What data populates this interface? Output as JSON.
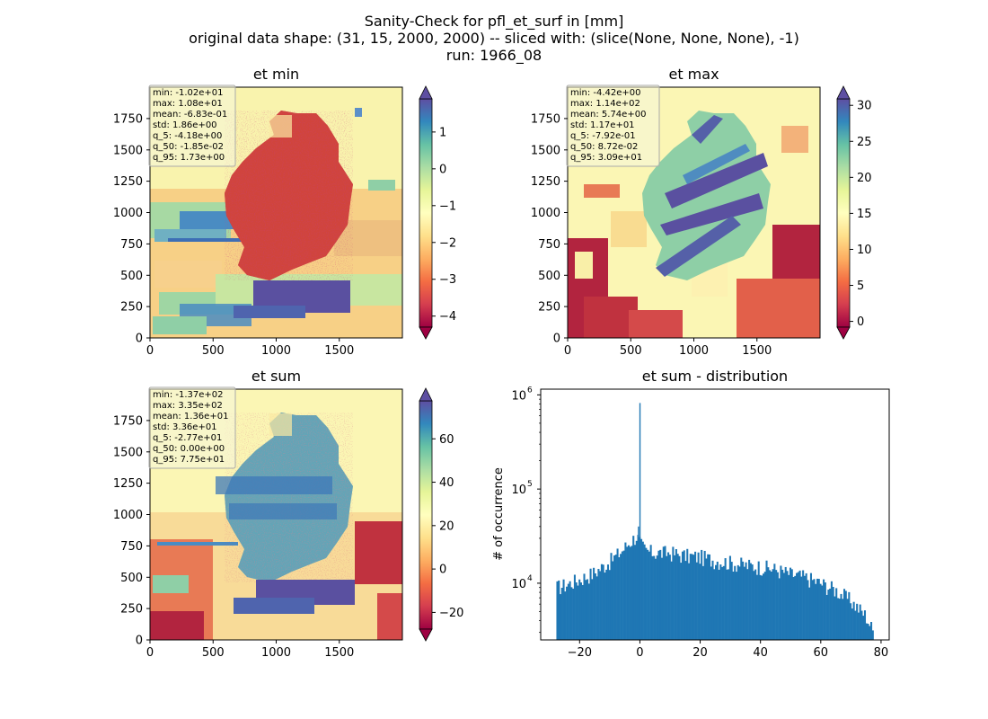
{
  "figure": {
    "title_lines": [
      "Sanity-Check for pfl_et_surf in [mm]",
      "original data shape: (31, 15, 2000, 2000) -- sliced with: (slice(None, None, None), -1)",
      "run: 1966_08"
    ]
  },
  "chart_data": [
    {
      "type": "heatmap",
      "title": "et min",
      "x_ticks": [
        "0",
        "500",
        "1000",
        "1500"
      ],
      "y_ticks": [
        "0",
        "250",
        "500",
        "750",
        "1000",
        "1250",
        "1500",
        "1750"
      ],
      "xlim": [
        0,
        2000
      ],
      "ylim": [
        0,
        2000
      ],
      "colormap": "Spectral",
      "colorbar_range": [
        -4.3,
        1.9
      ],
      "colorbar_ticks": [
        "−4",
        "−3",
        "−2",
        "−1",
        "0",
        "1"
      ],
      "colorbar_tick_values": [
        -4,
        -3,
        -2,
        -1,
        0,
        1
      ],
      "stats": [
        "min: -1.02e+01",
        "max: 1.08e+01",
        "mean: -6.83e-01",
        "std: 1.86e+00",
        "q_5: -4.18e+00",
        "q_50: -1.85e-02",
        "q_95: 1.73e+00"
      ]
    },
    {
      "type": "heatmap",
      "title": "et max",
      "x_ticks": [
        "0",
        "500",
        "1000",
        "1500"
      ],
      "y_ticks": [
        "0",
        "250",
        "500",
        "750",
        "1000",
        "1250",
        "1500",
        "1750"
      ],
      "xlim": [
        0,
        2000
      ],
      "ylim": [
        0,
        2000
      ],
      "colormap": "Spectral",
      "colorbar_range": [
        -0.8,
        30.9
      ],
      "colorbar_ticks": [
        "0",
        "5",
        "10",
        "15",
        "20",
        "25",
        "30"
      ],
      "colorbar_tick_values": [
        0,
        5,
        10,
        15,
        20,
        25,
        30
      ],
      "stats": [
        "min: -4.42e+00",
        "max: 1.14e+02",
        "mean: 5.74e+00",
        "std: 1.17e+01",
        "q_5: -7.92e-01",
        "q_50: 8.72e-02",
        "q_95: 3.09e+01"
      ]
    },
    {
      "type": "heatmap",
      "title": "et sum",
      "x_ticks": [
        "0",
        "500",
        "1000",
        "1500"
      ],
      "y_ticks": [
        "0",
        "250",
        "500",
        "750",
        "1000",
        "1250",
        "1500",
        "1750"
      ],
      "xlim": [
        0,
        2000
      ],
      "ylim": [
        0,
        2000
      ],
      "colormap": "Spectral",
      "colorbar_range": [
        -27.7,
        77.5
      ],
      "colorbar_ticks": [
        "−20",
        "0",
        "20",
        "40",
        "60"
      ],
      "colorbar_tick_values": [
        -20,
        0,
        20,
        40,
        60
      ],
      "stats": [
        "min: -1.37e+02",
        "max: 3.35e+02",
        "mean: 1.36e+01",
        "std: 3.36e+01",
        "q_5: -2.77e+01",
        "q_50: 0.00e+00",
        "q_95: 7.75e+01"
      ]
    },
    {
      "type": "bar",
      "title": "et sum - distribution",
      "xlabel": "",
      "ylabel": "# of occurrence",
      "y_scale": "log",
      "xlim": [
        -32.9,
        82.7
      ],
      "ylim": [
        2500,
        1150000
      ],
      "x_ticks": [
        "−20",
        "0",
        "20",
        "40",
        "60",
        "80"
      ],
      "x_tick_values": [
        -20,
        0,
        20,
        40,
        60,
        80
      ],
      "y_ticks": [
        {
          "value": 10000,
          "base": "10",
          "exp": "4"
        },
        {
          "value": 100000,
          "base": "10",
          "exp": "5"
        },
        {
          "value": 1000000,
          "base": "10",
          "exp": "6"
        }
      ],
      "bar_color": "#1f77b4",
      "bins": {
        "start": -27.7,
        "end": 77.5
      },
      "profile": {
        "x": [
          -27.7,
          -25,
          -20,
          -15,
          -10,
          -6,
          -4,
          -2,
          -1,
          0.5,
          2,
          5,
          10,
          15,
          20,
          25,
          30,
          35,
          40,
          45,
          50,
          55,
          60,
          65,
          70,
          75,
          77.5
        ],
        "y": [
          9000,
          9500,
          11000,
          13000,
          17000,
          22000,
          26000,
          30000,
          32000,
          25000,
          22000,
          21000,
          21000,
          19500,
          19000,
          17500,
          16500,
          15500,
          15000,
          14000,
          12500,
          11500,
          10000,
          8500,
          6500,
          4500,
          3000
        ]
      },
      "spikes": [
        {
          "x": 0.0,
          "y": 820000
        },
        {
          "x": -0.5,
          "y": 40000
        }
      ]
    }
  ]
}
